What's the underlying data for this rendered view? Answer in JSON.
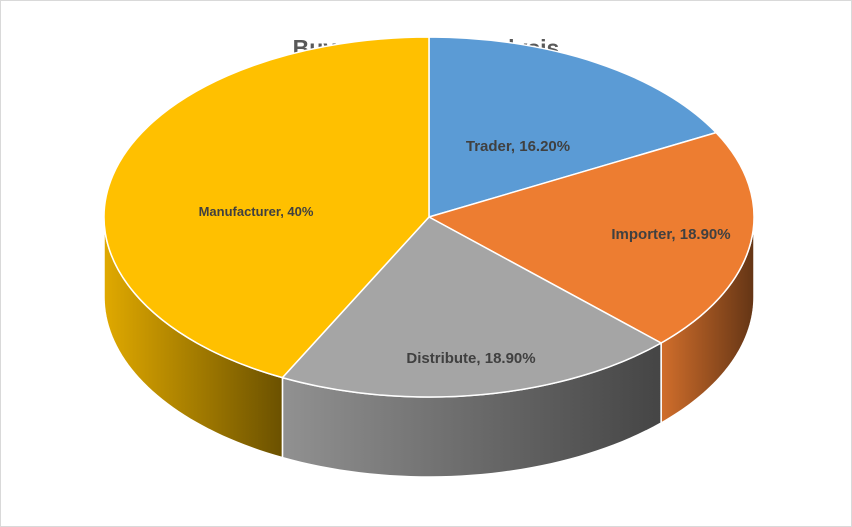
{
  "chart_data": {
    "type": "pie",
    "title": "Buyer Attribute Analysis",
    "slices": [
      {
        "name": "Trader",
        "value": 16.2,
        "label": "Trader, 16.20%",
        "color": "#5b9bd5"
      },
      {
        "name": "Importer",
        "value": 18.9,
        "label": "Importer, 18.90%",
        "color": "#ed7d31"
      },
      {
        "name": "Distribute",
        "value": 18.9,
        "label": "Distribute, 18.90%",
        "color": "#a5a5a5"
      },
      {
        "name": "Manufacturer",
        "value": 40,
        "label": "Manufacturer, 40%",
        "color": "#ffc000"
      }
    ],
    "start_angle": "12 o'clock",
    "direction": "clockwise",
    "style": "3d",
    "legend": "none"
  }
}
